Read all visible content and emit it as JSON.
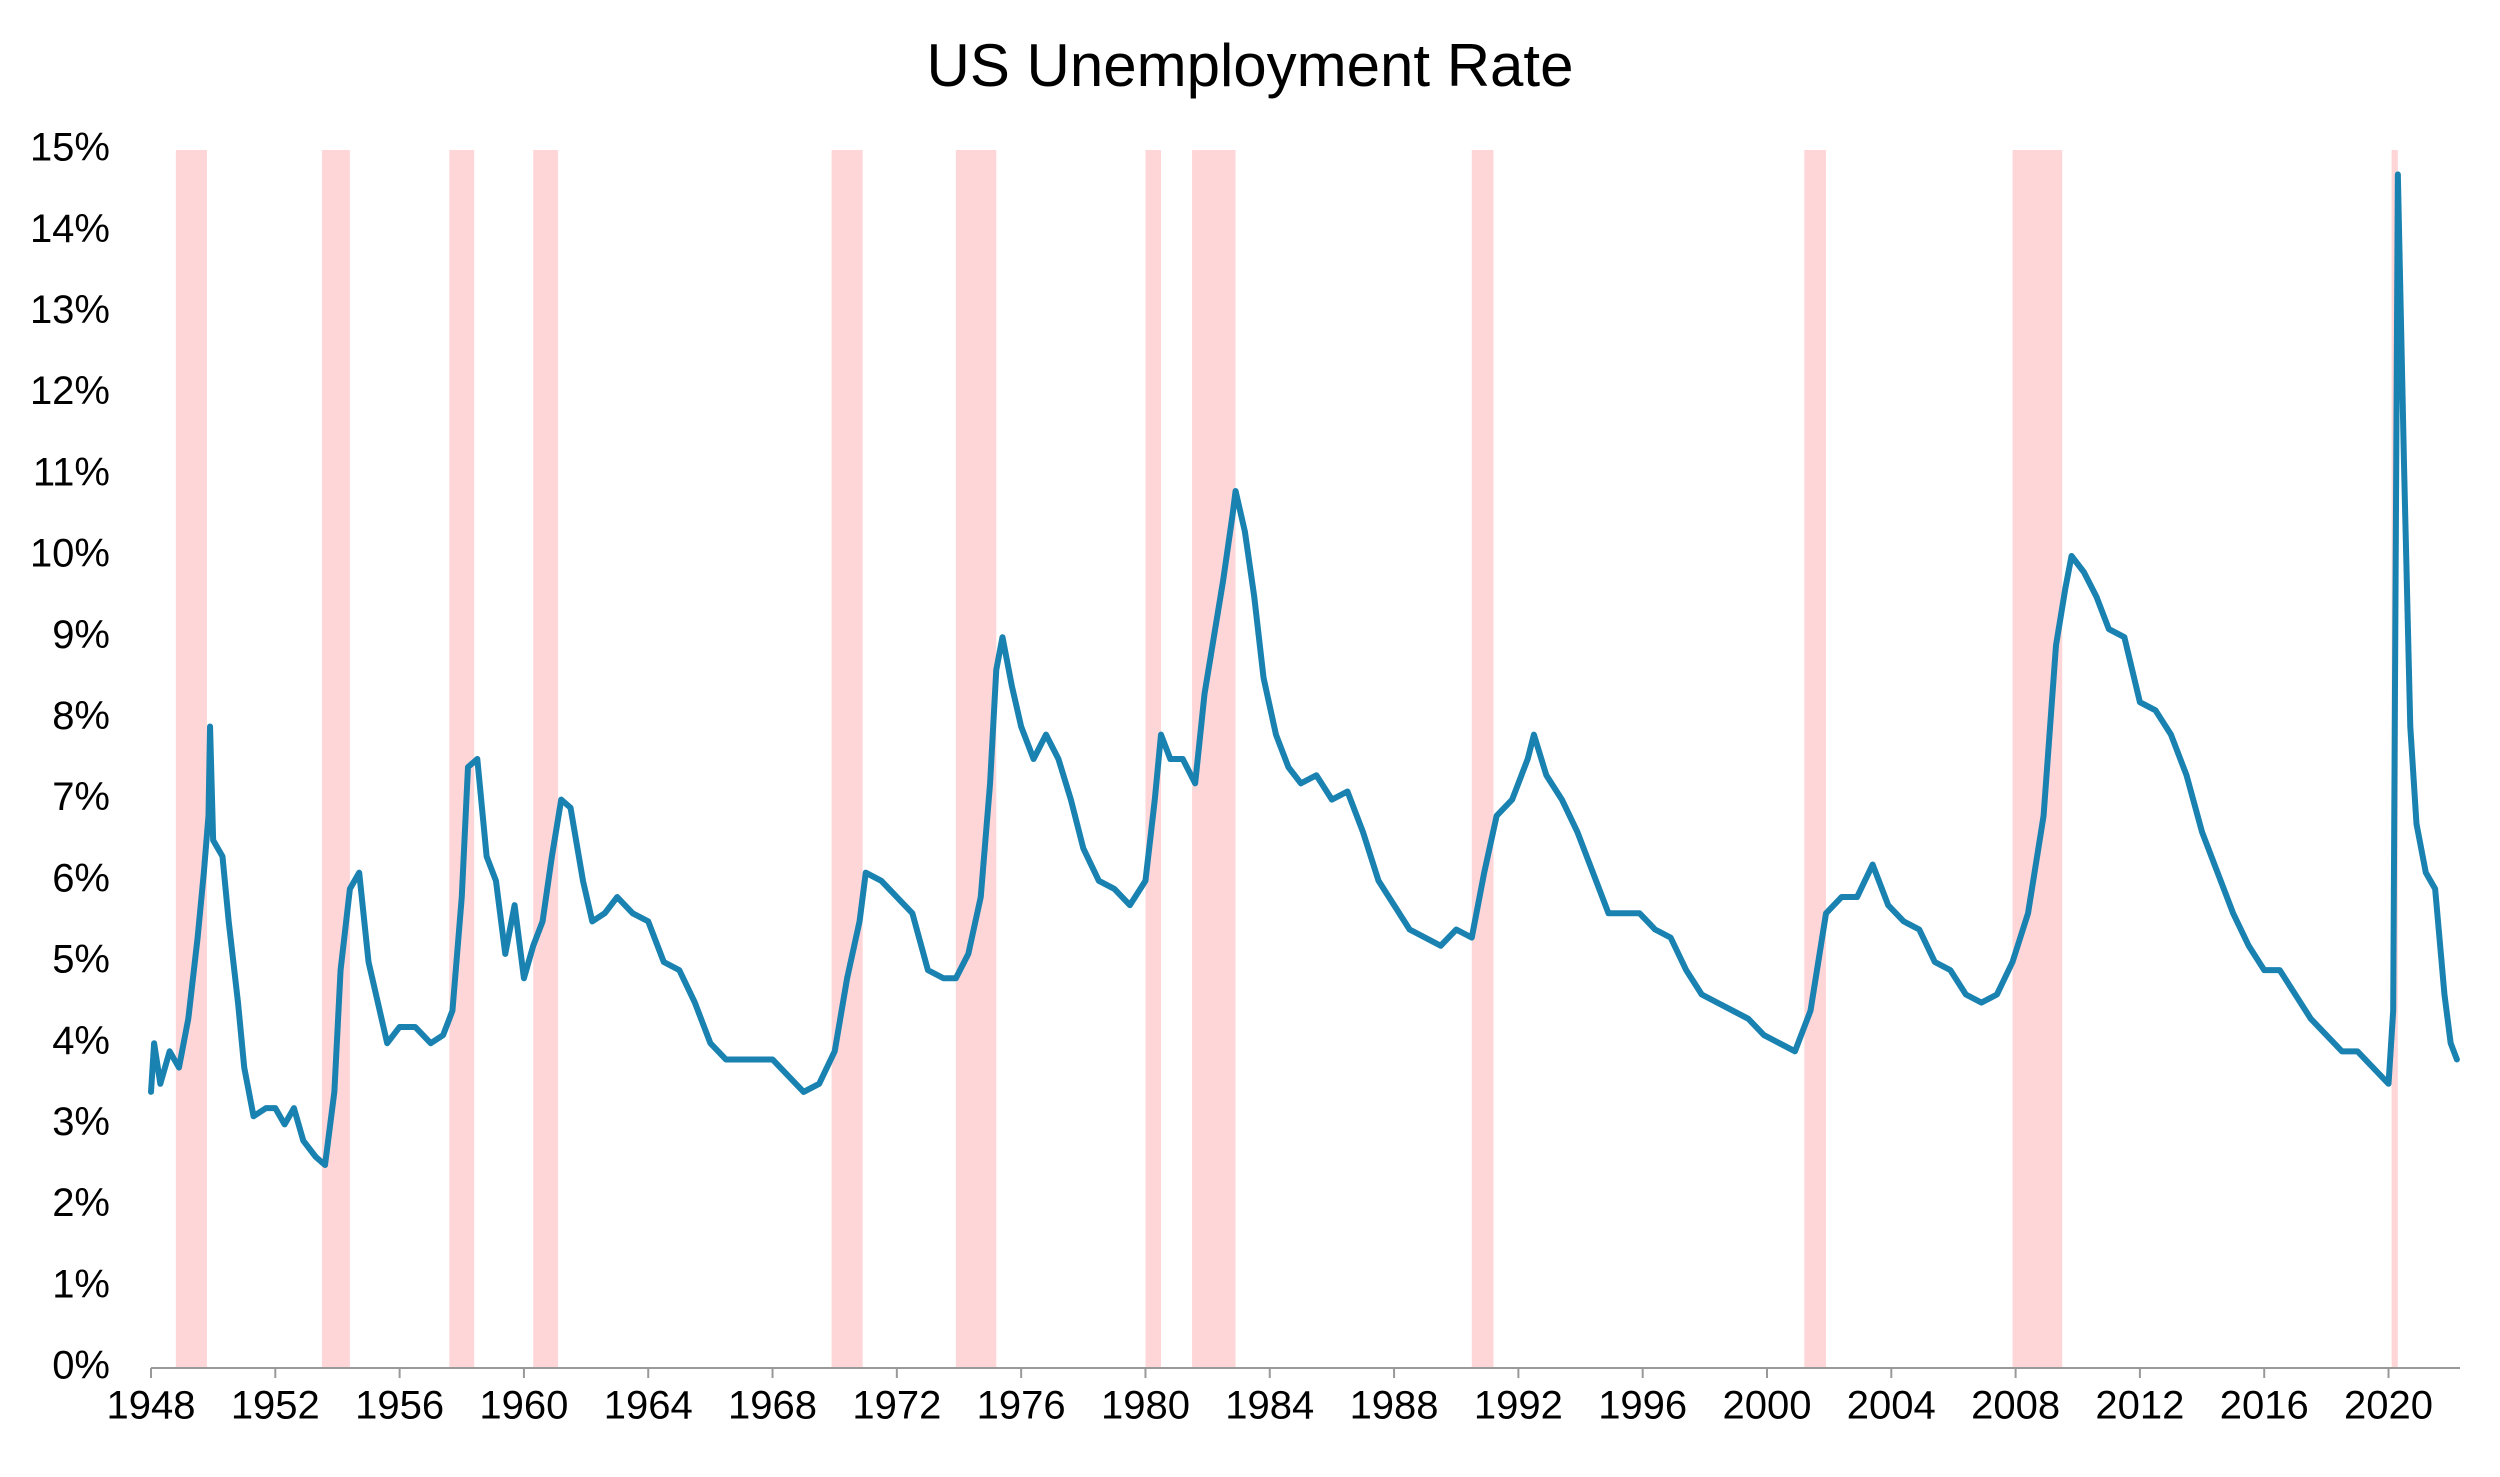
{
  "chart_data": {
    "type": "line",
    "title": "US Unemployment Rate",
    "xlim": [
      1948,
      2022.3
    ],
    "xticks": [
      1948,
      1952,
      1956,
      1960,
      1964,
      1968,
      1972,
      1976,
      1980,
      1984,
      1988,
      1992,
      1996,
      2000,
      2004,
      2008,
      2012,
      2016,
      2020
    ],
    "ylim": [
      0,
      15
    ],
    "yticks": [
      {
        "value": 0,
        "label": "0%"
      },
      {
        "value": 1,
        "label": "1%"
      },
      {
        "value": 2,
        "label": "2%"
      },
      {
        "value": 3,
        "label": "3%"
      },
      {
        "value": 4,
        "label": "4%"
      },
      {
        "value": 5,
        "label": "5%"
      },
      {
        "value": 6,
        "label": "6%"
      },
      {
        "value": 7,
        "label": "7%"
      },
      {
        "value": 8,
        "label": "8%"
      },
      {
        "value": 9,
        "label": "9%"
      },
      {
        "value": 10,
        "label": "10%"
      },
      {
        "value": 11,
        "label": "11%"
      },
      {
        "value": 12,
        "label": "12%"
      },
      {
        "value": 13,
        "label": "13%"
      },
      {
        "value": 14,
        "label": "14%"
      },
      {
        "value": 15,
        "label": "15%"
      }
    ],
    "recessions": [
      [
        1948.8,
        1949.8
      ],
      [
        1953.5,
        1954.4
      ],
      [
        1957.6,
        1958.4
      ],
      [
        1960.3,
        1961.1
      ],
      [
        1969.9,
        1970.9
      ],
      [
        1973.9,
        1975.2
      ],
      [
        1980.0,
        1980.5
      ],
      [
        1981.5,
        1982.9
      ],
      [
        1990.5,
        1991.2
      ],
      [
        2001.2,
        2001.9
      ],
      [
        2007.9,
        2009.5
      ],
      [
        2020.1,
        2020.3
      ]
    ],
    "recession_color": "#ffd6d8",
    "series": [
      {
        "color": "#1a82b1",
        "x": [
          1948.0,
          1948.1,
          1948.3,
          1948.6,
          1948.9,
          1949.2,
          1949.5,
          1949.7,
          1949.85,
          1949.9,
          1950.0,
          1950.3,
          1950.5,
          1950.8,
          1951.0,
          1951.3,
          1951.7,
          1952.0,
          1952.3,
          1952.6,
          1952.9,
          1953.3,
          1953.6,
          1953.9,
          1954.1,
          1954.4,
          1954.7,
          1955.0,
          1955.3,
          1955.6,
          1956.0,
          1956.5,
          1957.0,
          1957.4,
          1957.7,
          1958.0,
          1958.2,
          1958.5,
          1958.8,
          1959.1,
          1959.4,
          1959.7,
          1960.0,
          1960.3,
          1960.6,
          1960.9,
          1961.2,
          1961.5,
          1961.9,
          1962.2,
          1962.6,
          1963.0,
          1963.5,
          1964.0,
          1964.5,
          1965.0,
          1965.5,
          1966.0,
          1966.5,
          1967.0,
          1967.5,
          1968.0,
          1968.5,
          1969.0,
          1969.5,
          1970.0,
          1970.4,
          1970.8,
          1971.0,
          1971.5,
          1972.0,
          1972.5,
          1973.0,
          1973.5,
          1973.9,
          1974.3,
          1974.7,
          1975.0,
          1975.2,
          1975.4,
          1975.7,
          1976.0,
          1976.4,
          1976.8,
          1977.2,
          1977.6,
          1978.0,
          1978.5,
          1979.0,
          1979.5,
          1980.0,
          1980.3,
          1980.5,
          1980.8,
          1981.2,
          1981.6,
          1981.9,
          1982.2,
          1982.5,
          1982.8,
          1982.9,
          1983.2,
          1983.5,
          1983.8,
          1984.2,
          1984.6,
          1985.0,
          1985.5,
          1986.0,
          1986.5,
          1987.0,
          1987.5,
          1988.0,
          1988.5,
          1989.0,
          1989.5,
          1990.0,
          1990.5,
          1990.9,
          1991.3,
          1991.8,
          1992.3,
          1992.5,
          1992.9,
          1993.4,
          1993.9,
          1994.4,
          1994.9,
          1995.4,
          1995.9,
          1996.4,
          1996.9,
          1997.4,
          1997.9,
          1998.4,
          1998.9,
          1999.4,
          1999.9,
          2000.4,
          2000.9,
          2001.4,
          2001.9,
          2002.4,
          2002.9,
          2003.4,
          2003.9,
          2004.4,
          2004.9,
          2005.4,
          2005.9,
          2006.4,
          2006.9,
          2007.4,
          2007.9,
          2008.4,
          2008.9,
          2009.3,
          2009.6,
          2009.8,
          2010.2,
          2010.6,
          2011.0,
          2011.5,
          2012.0,
          2012.5,
          2013.0,
          2013.5,
          2014.0,
          2014.5,
          2015.0,
          2015.5,
          2016.0,
          2016.5,
          2017.0,
          2017.5,
          2018.0,
          2018.5,
          2019.0,
          2019.5,
          2020.0,
          2020.15,
          2020.3,
          2020.5,
          2020.7,
          2020.9,
          2021.2,
          2021.5,
          2021.8,
          2022.0,
          2022.2
        ],
        "values": [
          3.4,
          4.0,
          3.5,
          3.9,
          3.7,
          4.3,
          5.3,
          6.1,
          6.8,
          7.9,
          6.5,
          6.3,
          5.5,
          4.5,
          3.7,
          3.1,
          3.2,
          3.2,
          3.0,
          3.2,
          2.8,
          2.6,
          2.5,
          3.4,
          4.9,
          5.9,
          6.1,
          5.0,
          4.5,
          4.0,
          4.2,
          4.2,
          4.0,
          4.1,
          4.4,
          5.8,
          7.4,
          7.5,
          6.3,
          6.0,
          5.1,
          5.7,
          4.8,
          5.2,
          5.5,
          6.3,
          7.0,
          6.9,
          6.0,
          5.5,
          5.6,
          5.8,
          5.6,
          5.5,
          5.0,
          4.9,
          4.5,
          4.0,
          3.8,
          3.8,
          3.8,
          3.8,
          3.6,
          3.4,
          3.5,
          3.9,
          4.8,
          5.5,
          6.1,
          6.0,
          5.8,
          5.6,
          4.9,
          4.8,
          4.8,
          5.1,
          5.8,
          7.2,
          8.6,
          9.0,
          8.4,
          7.9,
          7.5,
          7.8,
          7.5,
          7.0,
          6.4,
          6.0,
          5.9,
          5.7,
          6.0,
          7.0,
          7.8,
          7.5,
          7.5,
          7.2,
          8.3,
          9.0,
          9.7,
          10.5,
          10.8,
          10.3,
          9.5,
          8.5,
          7.8,
          7.4,
          7.2,
          7.3,
          7.0,
          7.1,
          6.6,
          6.0,
          5.7,
          5.4,
          5.3,
          5.2,
          5.4,
          5.3,
          6.1,
          6.8,
          7.0,
          7.5,
          7.8,
          7.3,
          7.0,
          6.6,
          6.1,
          5.6,
          5.6,
          5.6,
          5.4,
          5.3,
          4.9,
          4.6,
          4.5,
          4.4,
          4.3,
          4.1,
          4.0,
          3.9,
          4.4,
          5.6,
          5.8,
          5.8,
          6.2,
          5.7,
          5.5,
          5.4,
          5.0,
          4.9,
          4.6,
          4.5,
          4.6,
          5.0,
          5.6,
          6.8,
          8.9,
          9.6,
          10.0,
          9.8,
          9.5,
          9.1,
          9.0,
          8.2,
          8.1,
          7.8,
          7.3,
          6.6,
          6.1,
          5.6,
          5.2,
          4.9,
          4.9,
          4.6,
          4.3,
          4.1,
          3.9,
          3.9,
          3.7,
          3.5,
          4.4,
          14.7,
          11.1,
          7.9,
          6.7,
          6.1,
          5.9,
          4.6,
          4.0,
          3.8
        ]
      }
    ]
  }
}
